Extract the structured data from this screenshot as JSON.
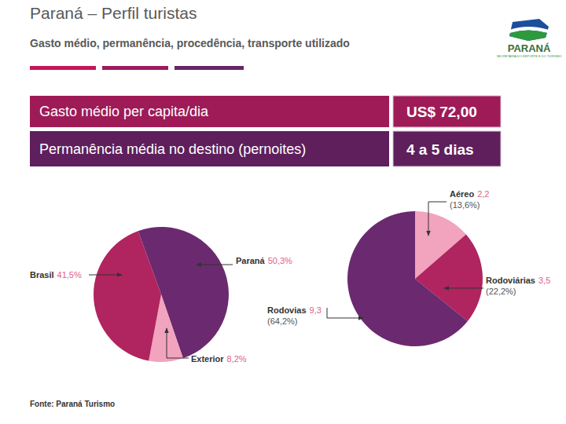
{
  "header": {
    "title": "Paraná – Perfil turistas",
    "subtitle": "Gasto médio, permanência, procedência, transporte utilizado",
    "logo": "PARANÁ",
    "logo_subtitle": "SECRETARIA DO ESPORTE E DO TURISMO"
  },
  "table": {
    "rows": [
      [
        "Gasto médio per capita/dia",
        "US$ 72,00"
      ],
      [
        "Permanência média no destino (pernoites)",
        "4 a 5 dias"
      ]
    ]
  },
  "chart_data": [
    {
      "type": "pie",
      "categories": [
        "Paraná",
        "Exterior",
        "Brasil"
      ],
      "values": [
        50.3,
        8.2,
        41.5
      ],
      "value_labels": [
        "50,3%",
        "8,2%",
        "41,5%"
      ],
      "colors": [
        "#6b2a6f",
        "#f2a3bd",
        "#b0245f"
      ],
      "data_labels": true
    },
    {
      "type": "pie",
      "categories": [
        "Aéreo",
        "Rodoviárias",
        "Rodovias"
      ],
      "values": [
        13.6,
        22.2,
        64.2
      ],
      "value_labels": [
        "(13,6%)",
        "(22,2%)",
        "(64,2%)"
      ],
      "counts": [
        2.2,
        3.5,
        9.3
      ],
      "count_labels": [
        "2,2",
        "3,5",
        "9,3"
      ],
      "colors": [
        "#f2a3bd",
        "#b0245f",
        "#6b2a6f"
      ],
      "data_labels": true
    }
  ],
  "source": "Fonte: Paraná Turismo"
}
